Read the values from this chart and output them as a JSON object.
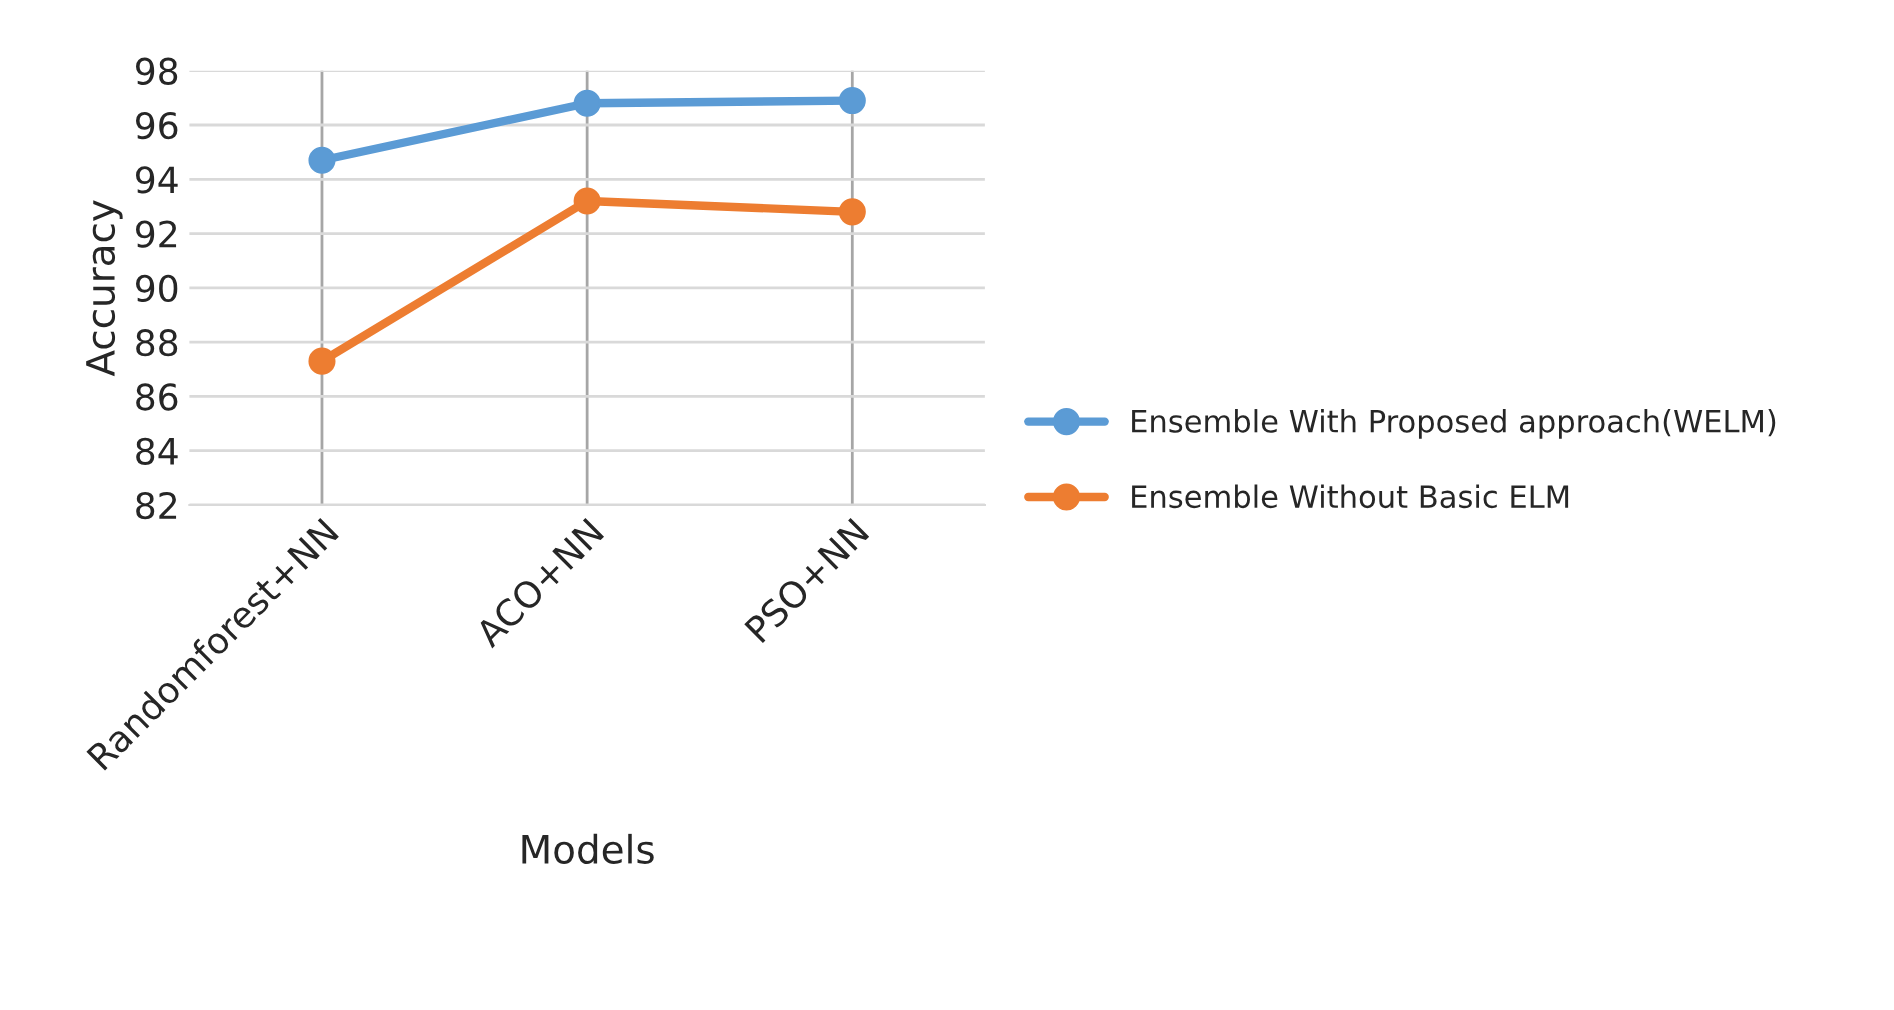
{
  "chart_data": {
    "type": "line",
    "xlabel": "Models",
    "ylabel": "Accuracy",
    "categories": [
      "Randomforest+NN",
      "ACO+NN",
      "PSO+NN"
    ],
    "series": [
      {
        "name": "Ensemble With Proposed approach(WELM)",
        "color": "#5b9bd5",
        "values": [
          94.7,
          96.8,
          96.9
        ]
      },
      {
        "name": "Ensemble Without Basic ELM",
        "color": "#ed7d31",
        "values": [
          87.3,
          93.2,
          92.8
        ]
      }
    ],
    "ylim": [
      82,
      98
    ],
    "yticks": [
      82,
      84,
      86,
      88,
      90,
      92,
      94,
      96,
      98
    ],
    "grid": true,
    "legend": "right",
    "marker": "circle",
    "line_style": "solid"
  }
}
